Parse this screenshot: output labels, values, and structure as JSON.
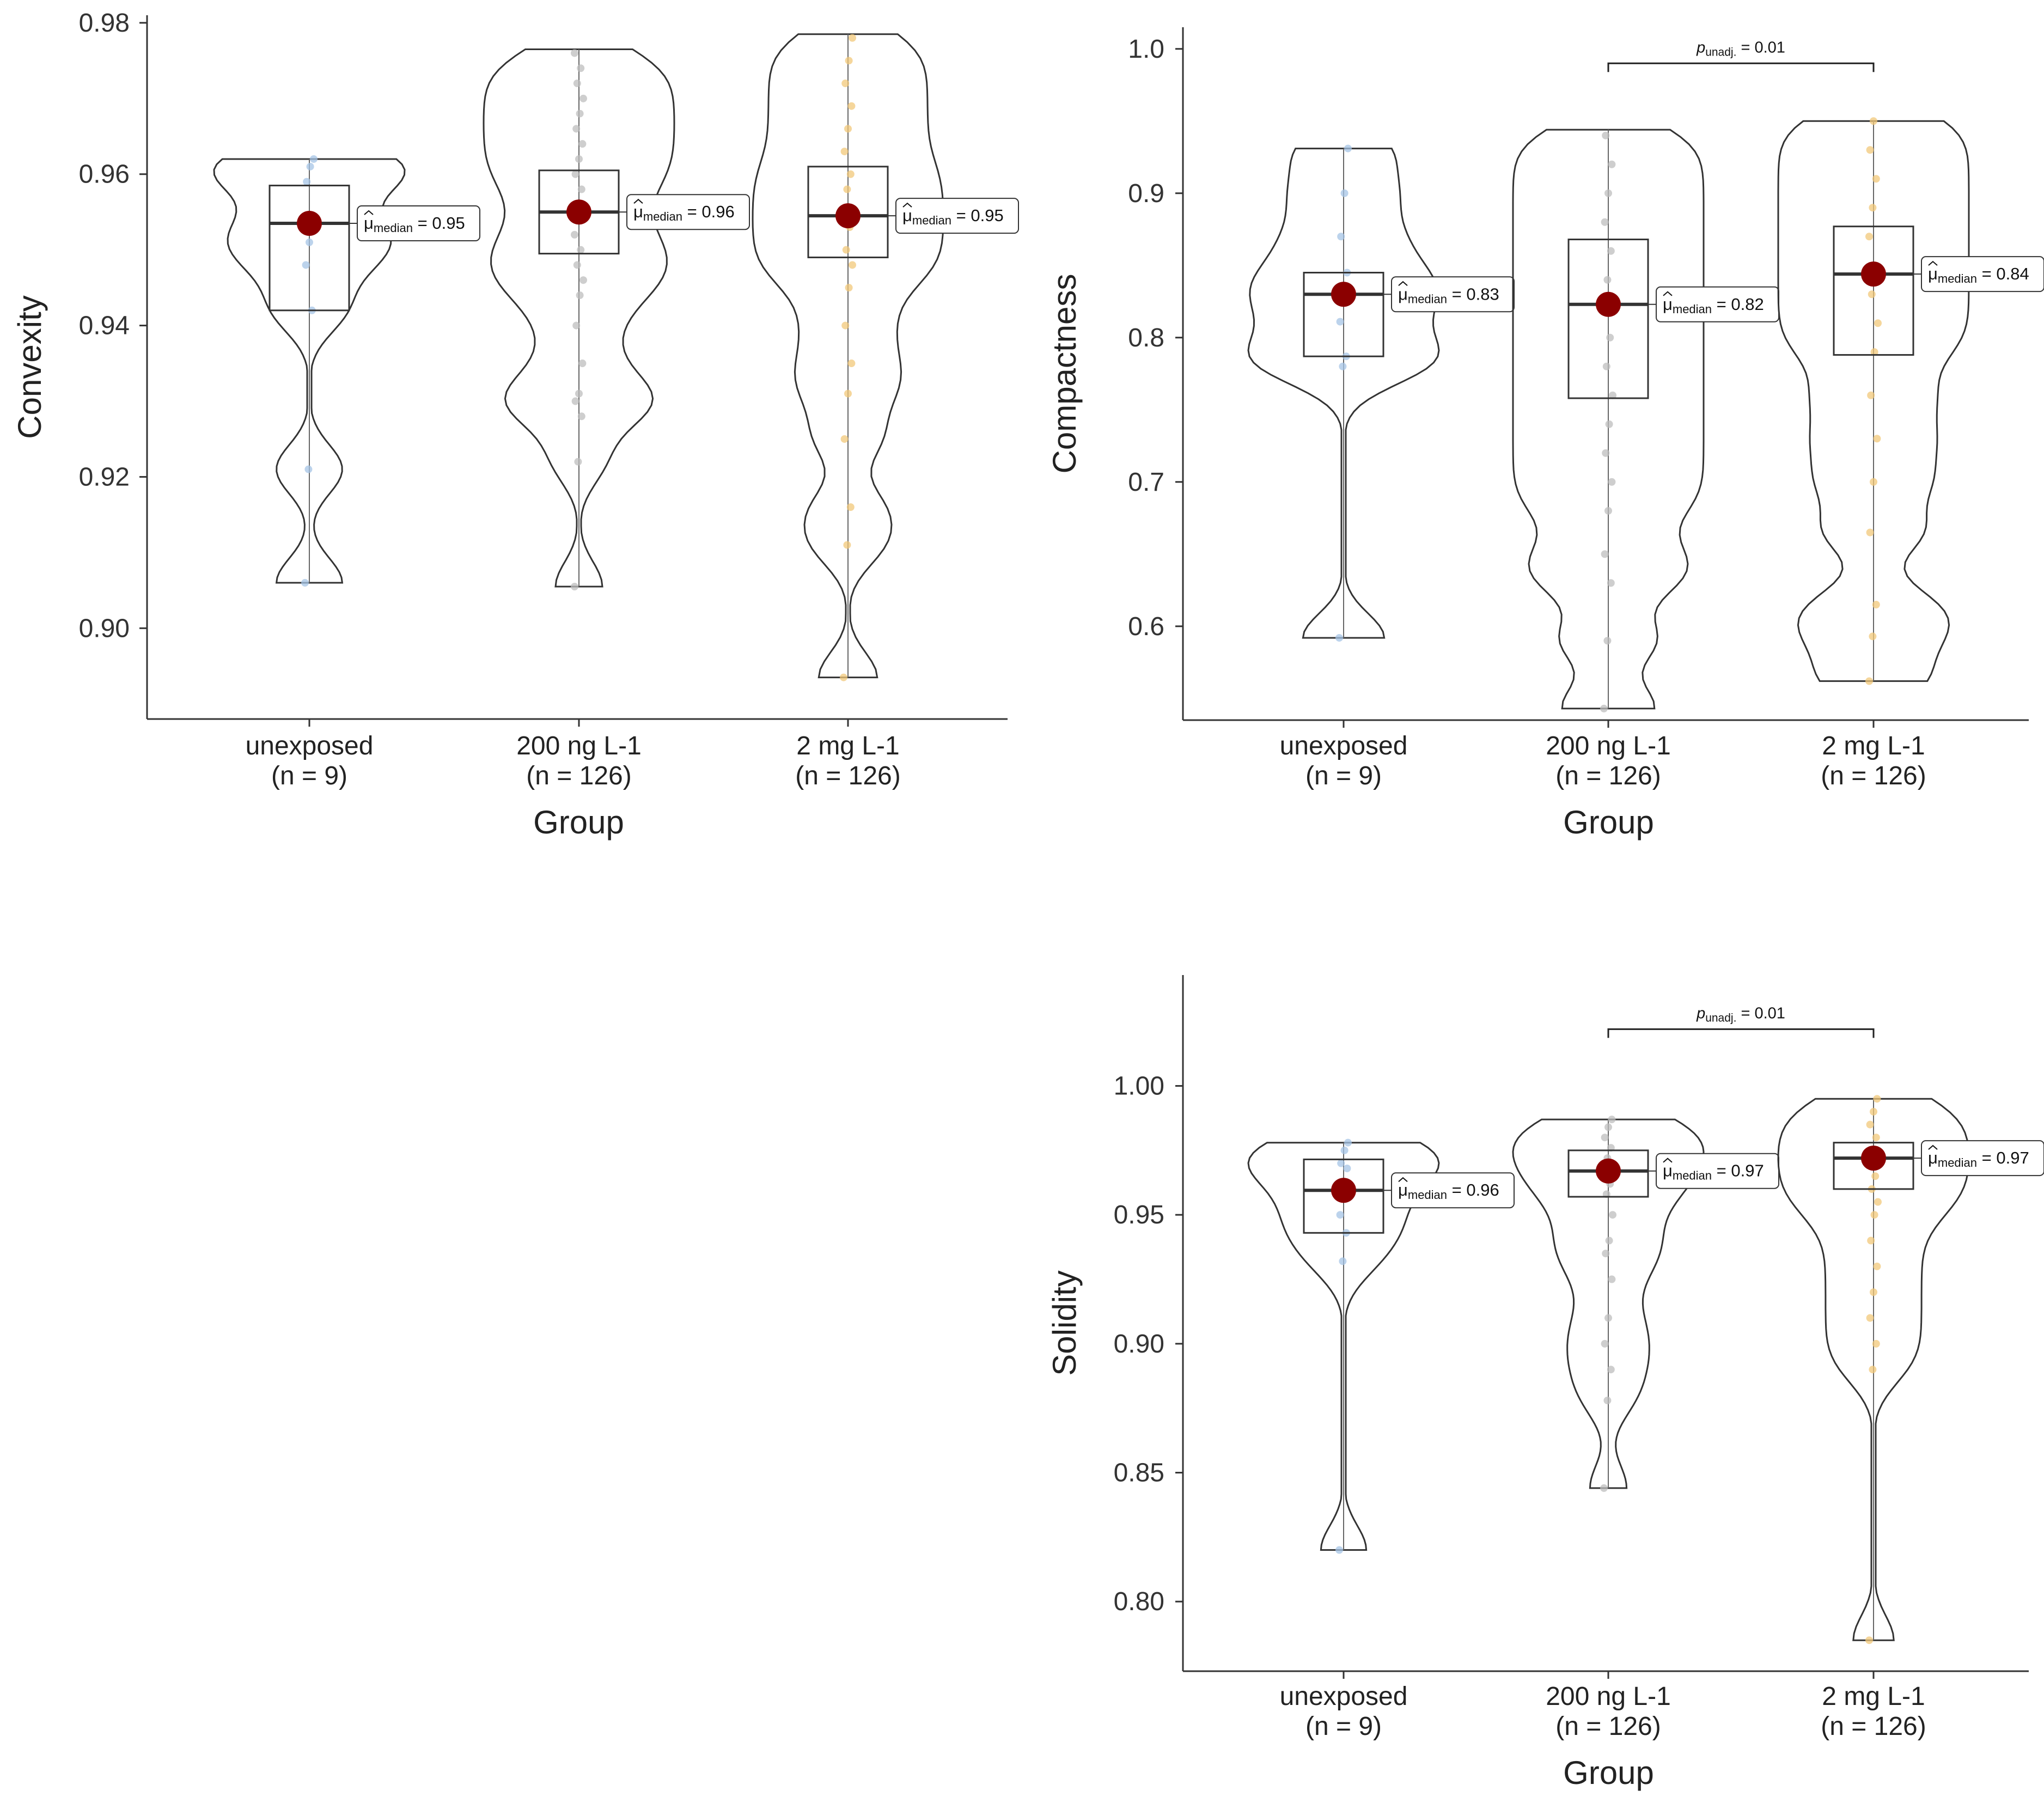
{
  "chart_data": [
    {
      "type": "violin-box",
      "xlabel": "Group",
      "ylabel": "Convexity",
      "ylim": [
        0.888,
        0.981
      ],
      "yticks": [
        "0.90",
        "0.92",
        "0.94",
        "0.96",
        "0.98"
      ],
      "groups": [
        {
          "name": "unexposed",
          "n_label": "(n = 9)",
          "color": "#a6c4e6",
          "min": 0.906,
          "q1": 0.942,
          "median": 0.9535,
          "q3": 0.9585,
          "max": 0.962,
          "points": [
            0.906,
            0.921,
            0.942,
            0.948,
            0.951,
            0.9535,
            0.959,
            0.961,
            0.962
          ],
          "annotation": {
            "symbol": "μ",
            "sub": "median",
            "value": "= 0.95"
          }
        },
        {
          "name": "200 ng L-1",
          "n_label": "(n = 126)",
          "color": "#bdbdbd",
          "min": 0.9055,
          "q1": 0.9495,
          "median": 0.955,
          "q3": 0.9605,
          "max": 0.9765,
          "points": [
            0.9055,
            0.922,
            0.928,
            0.93,
            0.931,
            0.935,
            0.94,
            0.944,
            0.946,
            0.948,
            0.95,
            0.952,
            0.955,
            0.958,
            0.96,
            0.962,
            0.964,
            0.966,
            0.968,
            0.97,
            0.972,
            0.974,
            0.976
          ],
          "annotation": {
            "symbol": "μ",
            "sub": "median",
            "value": "= 0.96"
          }
        },
        {
          "name": "2 mg L-1",
          "n_label": "(n = 126)",
          "color": "#f2c87a",
          "min": 0.8935,
          "q1": 0.949,
          "median": 0.9545,
          "q3": 0.961,
          "max": 0.9785,
          "points": [
            0.8935,
            0.911,
            0.916,
            0.925,
            0.931,
            0.935,
            0.94,
            0.945,
            0.948,
            0.95,
            0.953,
            0.955,
            0.958,
            0.96,
            0.963,
            0.966,
            0.969,
            0.972,
            0.975,
            0.978
          ],
          "annotation": {
            "symbol": "μ",
            "sub": "median",
            "value": "= 0.95"
          }
        }
      ]
    },
    {
      "type": "violin-box",
      "xlabel": "Group",
      "ylabel": "Compactness",
      "ylim": [
        0.535,
        1.015
      ],
      "yticks": [
        "0.6",
        "0.7",
        "0.8",
        "0.9",
        "1.0"
      ],
      "significance": {
        "from": 1,
        "to": 2,
        "label_p": "p",
        "label_sub": "unadj.",
        "value": "= 0.01",
        "level": 0.99
      },
      "groups": [
        {
          "name": "unexposed",
          "n_label": "(n = 9)",
          "color": "#a6c4e6",
          "min": 0.592,
          "q1": 0.787,
          "median": 0.83,
          "q3": 0.845,
          "max": 0.931,
          "points": [
            0.592,
            0.78,
            0.787,
            0.811,
            0.83,
            0.845,
            0.87,
            0.9,
            0.931
          ],
          "annotation": {
            "symbol": "μ",
            "sub": "median",
            "value": "= 0.83"
          }
        },
        {
          "name": "200 ng L-1",
          "n_label": "(n = 126)",
          "color": "#bdbdbd",
          "min": 0.543,
          "q1": 0.758,
          "median": 0.823,
          "q3": 0.868,
          "max": 0.944,
          "points": [
            0.543,
            0.59,
            0.63,
            0.65,
            0.68,
            0.7,
            0.72,
            0.74,
            0.76,
            0.78,
            0.8,
            0.82,
            0.84,
            0.86,
            0.88,
            0.9,
            0.92,
            0.94
          ],
          "annotation": {
            "symbol": "μ",
            "sub": "median",
            "value": "= 0.82"
          }
        },
        {
          "name": "2 mg L-1",
          "n_label": "(n = 126)",
          "color": "#f2c87a",
          "min": 0.562,
          "q1": 0.788,
          "median": 0.844,
          "q3": 0.877,
          "max": 0.95,
          "points": [
            0.562,
            0.593,
            0.615,
            0.665,
            0.7,
            0.73,
            0.76,
            0.79,
            0.81,
            0.83,
            0.85,
            0.87,
            0.89,
            0.91,
            0.93,
            0.95
          ],
          "annotation": {
            "symbol": "μ",
            "sub": "median",
            "value": "= 0.84"
          }
        }
      ]
    },
    {
      "type": "violin-box",
      "xlabel": "Group",
      "ylabel": "Solidity",
      "ylim": [
        0.773,
        1.043
      ],
      "yticks": [
        "0.80",
        "0.85",
        "0.90",
        "0.95",
        "1.00"
      ],
      "significance": {
        "from": 1,
        "to": 2,
        "label_p": "p",
        "label_sub": "unadj.",
        "value": "= 0.01",
        "level": 1.022
      },
      "groups": [
        {
          "name": "unexposed",
          "n_label": "(n = 9)",
          "color": "#a6c4e6",
          "min": 0.82,
          "q1": 0.943,
          "median": 0.9595,
          "q3": 0.9715,
          "max": 0.978,
          "points": [
            0.82,
            0.932,
            0.943,
            0.95,
            0.9595,
            0.968,
            0.97,
            0.975,
            0.978
          ],
          "annotation": {
            "symbol": "μ",
            "sub": "median",
            "value": "= 0.96"
          }
        },
        {
          "name": "200 ng L-1",
          "n_label": "(n = 126)",
          "color": "#bdbdbd",
          "min": 0.844,
          "q1": 0.957,
          "median": 0.967,
          "q3": 0.975,
          "max": 0.987,
          "points": [
            0.844,
            0.878,
            0.89,
            0.9,
            0.91,
            0.925,
            0.935,
            0.94,
            0.95,
            0.958,
            0.962,
            0.967,
            0.972,
            0.976,
            0.98,
            0.984,
            0.987
          ],
          "annotation": {
            "symbol": "μ",
            "sub": "median",
            "value": "= 0.97"
          }
        },
        {
          "name": "2 mg L-1",
          "n_label": "(n = 126)",
          "color": "#f2c87a",
          "min": 0.785,
          "q1": 0.96,
          "median": 0.972,
          "q3": 0.978,
          "max": 0.995,
          "points": [
            0.785,
            0.89,
            0.9,
            0.91,
            0.92,
            0.93,
            0.94,
            0.95,
            0.955,
            0.96,
            0.965,
            0.97,
            0.975,
            0.98,
            0.985,
            0.99,
            0.995
          ],
          "annotation": {
            "symbol": "μ",
            "sub": "median",
            "value": "= 0.97"
          }
        }
      ]
    }
  ],
  "colors": {
    "median_point": "#8b0000",
    "axis": "#333333",
    "outline": "#333333"
  }
}
